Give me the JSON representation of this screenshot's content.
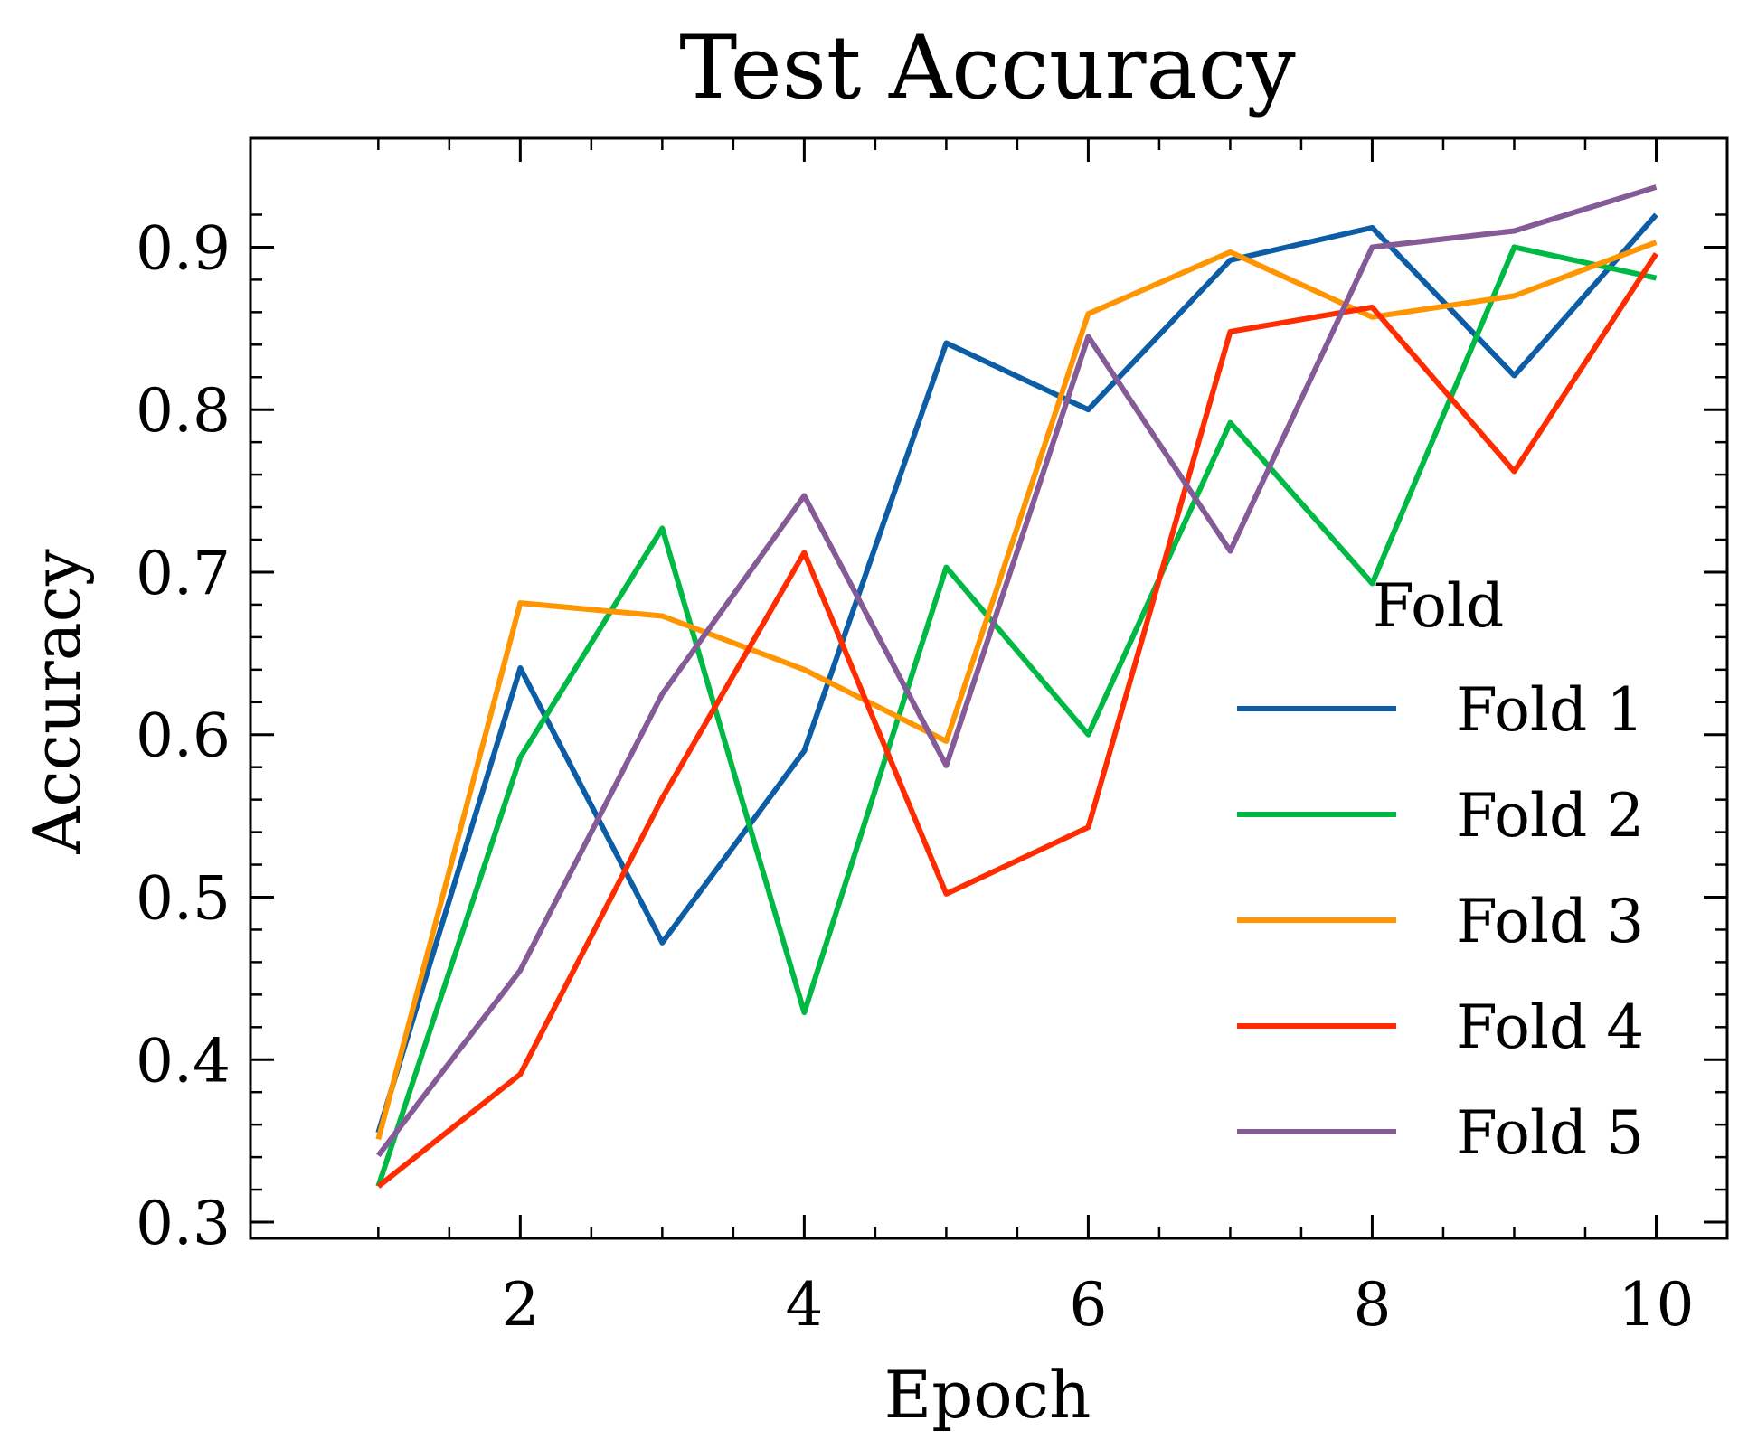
{
  "chart_data": {
    "type": "line",
    "title": "Test Accuracy",
    "xlabel": "Epoch",
    "ylabel": "Accuracy",
    "x": [
      1,
      2,
      3,
      4,
      5,
      6,
      7,
      8,
      9,
      10
    ],
    "xlim": [
      0.1,
      10.5
    ],
    "ylim": [
      0.29,
      0.967
    ],
    "xticks": [
      2,
      4,
      6,
      8,
      10
    ],
    "xtick_labels": [
      "2",
      "4",
      "6",
      "8",
      "10"
    ],
    "yticks": [
      0.3,
      0.4,
      0.5,
      0.6,
      0.7,
      0.8,
      0.9
    ],
    "ytick_labels": [
      "0.3",
      "0.4",
      "0.5",
      "0.6",
      "0.7",
      "0.8",
      "0.9"
    ],
    "grid": false,
    "legend": {
      "title": "Fold",
      "position": "lower-right"
    },
    "series": [
      {
        "name": "Fold 1",
        "color": "#0c5da5",
        "values": [
          0.355,
          0.641,
          0.472,
          0.59,
          0.841,
          0.8,
          0.892,
          0.912,
          0.821,
          0.92
        ]
      },
      {
        "name": "Fold 2",
        "color": "#00b945",
        "values": [
          0.322,
          0.586,
          0.727,
          0.429,
          0.703,
          0.6,
          0.792,
          0.693,
          0.9,
          0.881
        ]
      },
      {
        "name": "Fold 3",
        "color": "#ff9500",
        "values": [
          0.351,
          0.681,
          0.673,
          0.64,
          0.596,
          0.859,
          0.897,
          0.857,
          0.87,
          0.903
        ]
      },
      {
        "name": "Fold 4",
        "color": "#ff2c00",
        "values": [
          0.322,
          0.391,
          0.561,
          0.712,
          0.502,
          0.543,
          0.848,
          0.863,
          0.762,
          0.896
        ]
      },
      {
        "name": "Fold 5",
        "color": "#845b97",
        "values": [
          0.341,
          0.455,
          0.625,
          0.747,
          0.581,
          0.845,
          0.713,
          0.9,
          0.91,
          0.937
        ]
      }
    ]
  }
}
